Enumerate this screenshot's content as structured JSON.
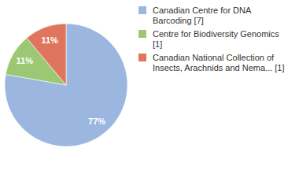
{
  "chart_data": {
    "type": "pie",
    "categories": [
      "Canadian Centre for DNA Barcoding [7]",
      "Centre for Biodiversity Genomics [1]",
      "Canadian National Collection of Insects, Arachnids and Nema... [1]"
    ],
    "values": [
      77,
      11,
      11
    ],
    "value_labels": [
      "77%",
      "11%",
      "11%"
    ],
    "colors": [
      "#9bb7df",
      "#9cc874",
      "#e0755d"
    ],
    "data_labels": true,
    "legend": "top-right"
  }
}
